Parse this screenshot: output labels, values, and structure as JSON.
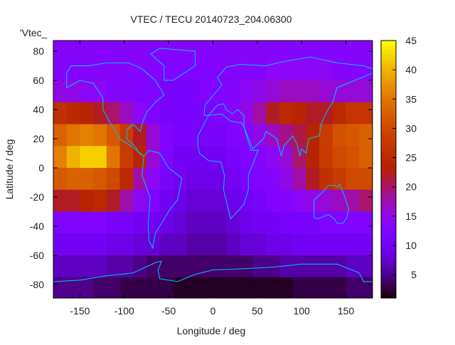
{
  "chart_data": {
    "type": "heatmap",
    "title": "VTEC / TECU 20140723_204.06300",
    "key_label": "'Vtec_",
    "xlabel": "Longitude / deg",
    "ylabel": "Latitude / deg",
    "xlim": [
      -180,
      180
    ],
    "ylim": [
      -89,
      87.5
    ],
    "xticks": [
      -150,
      -100,
      -50,
      0,
      50,
      100,
      150
    ],
    "yticks": [
      -80,
      -60,
      -40,
      -20,
      0,
      20,
      40,
      60,
      80
    ],
    "colorbar": {
      "range": [
        1,
        45
      ],
      "ticks": [
        5,
        10,
        15,
        20,
        25,
        30,
        35,
        40,
        45
      ],
      "palette": "black-purple-red-orange-yellow"
    },
    "coastline_color": "#00bfff",
    "grid": false,
    "lon_centers": [
      -172.5,
      -157.5,
      -142.5,
      -127.5,
      -112.5,
      -97.5,
      -82.5,
      -67.5,
      -52.5,
      -37.5,
      -22.5,
      -7.5,
      7.5,
      22.5,
      37.5,
      52.5,
      67.5,
      82.5,
      97.5,
      112.5,
      127.5,
      142.5,
      157.5,
      172.5
    ],
    "lat_centers": [
      82.5,
      67.5,
      52.5,
      37.5,
      22.5,
      7.5,
      -7.5,
      -22.5,
      -37.5,
      -52.5,
      -67.5,
      -82.5
    ],
    "values": [
      [
        13,
        13,
        13,
        13,
        13,
        13,
        13,
        13,
        13,
        13,
        13,
        13,
        13,
        13,
        13,
        13,
        13,
        13,
        13,
        13,
        13,
        13,
        13,
        13
      ],
      [
        13,
        13,
        13,
        13,
        13,
        13,
        13,
        13,
        12,
        12,
        12,
        12,
        13,
        13,
        13,
        13,
        14,
        14,
        14,
        14,
        14,
        13,
        13,
        13
      ],
      [
        15,
        15,
        14,
        14,
        13,
        13,
        12,
        12,
        11,
        11,
        11,
        12,
        12,
        13,
        14,
        15,
        16,
        17,
        17,
        17,
        16,
        16,
        16,
        16
      ],
      [
        26,
        25,
        24,
        22,
        20,
        17,
        14,
        12,
        11,
        11,
        11,
        11,
        12,
        13,
        15,
        18,
        22,
        25,
        24,
        22,
        22,
        25,
        27,
        27
      ],
      [
        33,
        35,
        36,
        35,
        32,
        28,
        22,
        16,
        12,
        11,
        11,
        11,
        11,
        12,
        13,
        15,
        17,
        19,
        21,
        24,
        28,
        31,
        32,
        33
      ],
      [
        36,
        40,
        42,
        42,
        35,
        28,
        24,
        16,
        12,
        10,
        10,
        10,
        10,
        11,
        12,
        13,
        14,
        16,
        20,
        24,
        28,
        30,
        31,
        33
      ],
      [
        32,
        33,
        33,
        32,
        30,
        25,
        18,
        14,
        11,
        10,
        9,
        9,
        9,
        10,
        11,
        12,
        13,
        15,
        18,
        22,
        26,
        28,
        30,
        30
      ],
      [
        22,
        22,
        24,
        25,
        22,
        18,
        14,
        12,
        10,
        9,
        8,
        8,
        8,
        9,
        10,
        11,
        12,
        13,
        14,
        15,
        16,
        17,
        18,
        20
      ],
      [
        12,
        12,
        12,
        12,
        11,
        11,
        10,
        10,
        9,
        8,
        7,
        7,
        7,
        8,
        9,
        10,
        10,
        11,
        11,
        11,
        12,
        12,
        12,
        12
      ],
      [
        10,
        10,
        10,
        10,
        9,
        9,
        8,
        8,
        7,
        7,
        6,
        6,
        6,
        7,
        8,
        8,
        9,
        9,
        10,
        10,
        10,
        10,
        10,
        10
      ],
      [
        7,
        7,
        7,
        7,
        6,
        6,
        5,
        4,
        4,
        4,
        4,
        4,
        4,
        4,
        4,
        5,
        5,
        6,
        6,
        6,
        6,
        6,
        7,
        7
      ],
      [
        5,
        5,
        5,
        4,
        4,
        3,
        3,
        3,
        3,
        2,
        2,
        2,
        2,
        2,
        2,
        2,
        2,
        2,
        3,
        3,
        3,
        3,
        4,
        4
      ]
    ]
  }
}
